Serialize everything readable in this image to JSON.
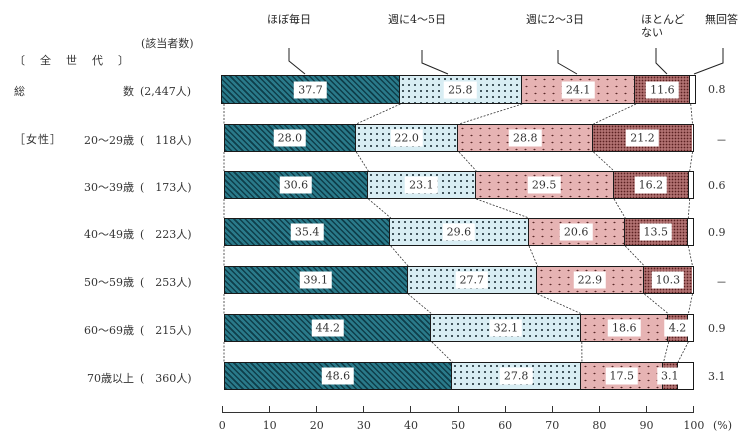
{
  "header": {
    "count_header": "(該当者数)",
    "group_all": "〔　全　世　代　〕",
    "group_female": "［女性］",
    "unit": "(%)"
  },
  "legend": [
    {
      "label": "ほぼ毎日",
      "pattern": "diagonal-teal"
    },
    {
      "label": "週に4～5日",
      "pattern": "dotted-lightblue"
    },
    {
      "label": "週に2～3日",
      "pattern": "dotted-pink"
    },
    {
      "label": "ほとんど\nない",
      "pattern": "dense-maroon"
    },
    {
      "label": "無回答",
      "pattern": "white"
    }
  ],
  "colors": {
    "daily": "#2a7a8a",
    "four_five": "#d8edf3",
    "two_three": "#e6b3b3",
    "rarely": "#b07070",
    "no_answer": "#ffffff"
  },
  "rows": [
    {
      "label_a": "総",
      "label_b": "数",
      "n": "(2,447人)",
      "values": [
        37.7,
        25.8,
        24.1,
        11.6,
        0.8
      ],
      "labels": [
        "37.7",
        "25.8",
        "24.1",
        "11.6",
        ""
      ],
      "side": "0.8"
    },
    {
      "label_a": "",
      "label_b": "20～29歳",
      "n": "(　118人)",
      "values": [
        28.0,
        22.0,
        28.8,
        21.2,
        0
      ],
      "labels": [
        "28.0",
        "22.0",
        "28.8",
        "21.2",
        ""
      ],
      "side": "－"
    },
    {
      "label_a": "",
      "label_b": "30～39歳",
      "n": "(　173人)",
      "values": [
        30.6,
        23.1,
        29.5,
        16.2,
        0.6
      ],
      "labels": [
        "30.6",
        "23.1",
        "29.5",
        "16.2",
        ""
      ],
      "side": "0.6"
    },
    {
      "label_a": "",
      "label_b": "40～49歳",
      "n": "(　223人)",
      "values": [
        35.4,
        29.6,
        20.6,
        13.5,
        0.9
      ],
      "labels": [
        "35.4",
        "29.6",
        "20.6",
        "13.5",
        ""
      ],
      "side": "0.9"
    },
    {
      "label_a": "",
      "label_b": "50～59歳",
      "n": "(　253人)",
      "values": [
        39.1,
        27.7,
        22.9,
        10.3,
        0
      ],
      "labels": [
        "39.1",
        "27.7",
        "22.9",
        "10.3",
        ""
      ],
      "side": "－"
    },
    {
      "label_a": "",
      "label_b": "60～69歳",
      "n": "(　215人)",
      "values": [
        44.2,
        32.1,
        18.6,
        4.2,
        0.9
      ],
      "labels": [
        "44.2",
        "32.1",
        "18.6",
        "4.2",
        ""
      ],
      "side": "0.9"
    },
    {
      "label_a": "",
      "label_b": "70歳以上",
      "n": "(　360人)",
      "values": [
        48.6,
        27.8,
        17.5,
        3.1,
        3.1
      ],
      "labels": [
        "48.6",
        "27.8",
        "17.5",
        "3.1",
        ""
      ],
      "side": "3.1"
    }
  ],
  "axis": {
    "ticks": [
      "0",
      "10",
      "20",
      "30",
      "40",
      "50",
      "60",
      "70",
      "80",
      "90",
      "100"
    ]
  },
  "chart_data": {
    "type": "bar",
    "orientation": "horizontal-stacked-100",
    "title": "",
    "xlabel": "(%)",
    "ylabel": "",
    "xlim": [
      0,
      100
    ],
    "grid": false,
    "legend_position": "top, with leader lines to first bar",
    "categories": [
      "総数 (2,447人)",
      "女性 20～29歳 (118人)",
      "女性 30～39歳 (173人)",
      "女性 40～49歳 (223人)",
      "女性 50～59歳 (253人)",
      "女性 60～69歳 (215人)",
      "女性 70歳以上 (360人)"
    ],
    "series": [
      {
        "name": "ほぼ毎日",
        "values": [
          37.7,
          28.0,
          30.6,
          35.4,
          39.1,
          44.2,
          48.6
        ]
      },
      {
        "name": "週に4～5日",
        "values": [
          25.8,
          22.0,
          23.1,
          29.6,
          27.7,
          32.1,
          27.8
        ]
      },
      {
        "name": "週に2～3日",
        "values": [
          24.1,
          28.8,
          29.5,
          20.6,
          22.9,
          18.6,
          17.5
        ]
      },
      {
        "name": "ほとんどない",
        "values": [
          11.6,
          21.2,
          16.2,
          13.5,
          10.3,
          4.2,
          3.1
        ]
      },
      {
        "name": "無回答",
        "values": [
          0.8,
          0,
          0.6,
          0.9,
          0,
          0.9,
          3.1
        ]
      }
    ],
    "tick_labels": [
      "0",
      "10",
      "20",
      "30",
      "40",
      "50",
      "60",
      "70",
      "80",
      "90",
      "100"
    ],
    "sample_sizes": [
      "2,447",
      "118",
      "173",
      "223",
      "253",
      "215",
      "360"
    ],
    "group_labels": [
      "〔全世代〕",
      "［女性］"
    ]
  }
}
